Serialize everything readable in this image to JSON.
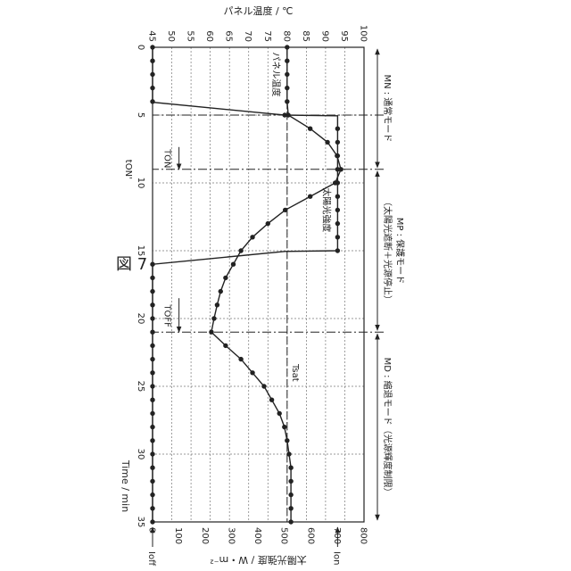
{
  "figure": {
    "title": "図 7"
  },
  "chart_data": {
    "type": "line",
    "title": "図 7",
    "xlabel": "Time / min",
    "ylabel_left": "パネル温度 / ℃",
    "ylabel_right": "太陽光強度 / W・m⁻²",
    "xlim": [
      0,
      35
    ],
    "ylim_left": [
      45,
      100
    ],
    "ylim_right": [
      0,
      800
    ],
    "xticks": [
      "0",
      "5",
      "10",
      "15",
      "20",
      "25",
      "30",
      "35"
    ],
    "yticks_left": [
      "45",
      "50",
      "55",
      "60",
      "65",
      "70",
      "75",
      "80",
      "85",
      "90",
      "95",
      "100"
    ],
    "yticks_right": [
      "0",
      "100",
      "200",
      "300",
      "400",
      "500",
      "600",
      "700",
      "800"
    ],
    "grid": true,
    "series": [
      {
        "name": "パネル温度",
        "color": "#222222",
        "axis": "left",
        "x": [
          0,
          1,
          2,
          3,
          4,
          5,
          6,
          7,
          8,
          9,
          10,
          11,
          12,
          13,
          14,
          15,
          16,
          17,
          18,
          19,
          20,
          21,
          22,
          23,
          24,
          25,
          26,
          27,
          28,
          29,
          30,
          31,
          32,
          33,
          34,
          35
        ],
        "values": [
          80,
          80,
          80,
          80,
          80,
          80.3,
          86,
          90.5,
          93,
          94,
          92.5,
          86,
          79.5,
          75,
          71,
          68,
          66,
          64,
          62.7,
          61.8,
          61,
          60.3,
          64,
          68,
          71,
          74,
          76,
          78,
          79.3,
          80,
          80.5,
          81,
          81,
          81,
          81,
          81
        ]
      },
      {
        "name": "太陽光強度",
        "color": "#222222",
        "axis": "right",
        "x": [
          0,
          1,
          2,
          3,
          4,
          4.05,
          5,
          5.05,
          6,
          7,
          8,
          9,
          10,
          11,
          12,
          13,
          14,
          15,
          15.05,
          16,
          16.05,
          17,
          18,
          19,
          20,
          21,
          22,
          23,
          24,
          25,
          26,
          27,
          28,
          29,
          30,
          31,
          32,
          33,
          34,
          35
        ],
        "values": [
          0,
          0,
          0,
          0,
          0,
          0,
          500,
          700,
          700,
          700,
          700,
          700,
          700,
          700,
          700,
          700,
          700,
          700,
          500,
          0,
          0,
          0,
          0,
          0,
          0,
          0,
          0,
          0,
          0,
          0,
          0,
          0,
          0,
          0,
          0,
          0,
          0,
          0,
          0,
          0
        ]
      }
    ],
    "reference_lines": [
      {
        "label": "Tsat",
        "axis": "left",
        "value": 80
      },
      {
        "label": "Ion",
        "axis": "right",
        "value": 700
      },
      {
        "label": "Ioff",
        "axis": "right",
        "value": 0
      },
      {
        "label": "tON'",
        "axis": "x",
        "value": 9
      },
      {
        "label": "",
        "axis": "x",
        "value": 5
      },
      {
        "label": "",
        "axis": "x",
        "value": 21
      }
    ],
    "annotations": [
      {
        "text": "TON",
        "x": 9,
        "y_right": 100,
        "note": "arrow pointing to ton"
      },
      {
        "text": "TOFF",
        "x": 21,
        "y_right": 100,
        "note": "arrow pointing to toff"
      },
      {
        "text": "パネル温度",
        "target": "パネル温度"
      },
      {
        "text": "太陽光強度",
        "target": "太陽光強度"
      }
    ],
    "phases": [
      {
        "label": "MN : 通常モード",
        "x_start": 0,
        "x_end": 9
      },
      {
        "label": "MP : 保護モード\n（太陽光遮断＋光源停止）",
        "x_start": 9,
        "x_end": 21
      },
      {
        "label": "MD : 縮退モード（光源輝度制限）",
        "x_start": 21,
        "x_end": 35
      }
    ]
  }
}
